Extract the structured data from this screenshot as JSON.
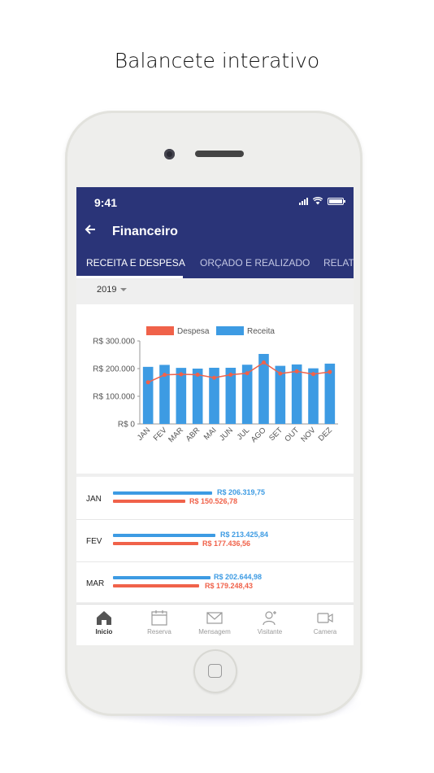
{
  "headline": "Balancete interativo",
  "status": {
    "time": "9:41"
  },
  "appbar": {
    "back_icon": "arrow-left-icon",
    "title": "Financeiro"
  },
  "tabs": [
    {
      "label": "RECEITA E DESPESA",
      "active": true
    },
    {
      "label": "ORÇADO E REALIZADO",
      "active": false
    },
    {
      "label": "RELATÓRIOS",
      "active": false
    }
  ],
  "year_selector": {
    "value": "2019"
  },
  "chart_data": {
    "type": "bar",
    "categories": [
      "JAN",
      "FEV",
      "MAR",
      "ABR",
      "MAI",
      "JUN",
      "JUL",
      "AGO",
      "SET",
      "OUT",
      "NOV",
      "DEZ"
    ],
    "series": [
      {
        "name": "Receita",
        "kind": "bar",
        "color": "#3d9be3",
        "values": [
          206319.75,
          213425.84,
          202644.98,
          200000,
          203000,
          203000,
          214000,
          253000,
          210000,
          215000,
          201000,
          218000
        ]
      },
      {
        "name": "Despesa",
        "kind": "line",
        "color": "#f0624a",
        "values": [
          150526.78,
          177436.56,
          179248.43,
          178000,
          167000,
          178000,
          183000,
          222000,
          182000,
          190000,
          180000,
          188000
        ]
      }
    ],
    "y_ticks": [
      "R$ 0",
      "R$ 100.000",
      "R$ 200.000",
      "R$ 300.000"
    ],
    "ylim": [
      0,
      300000
    ],
    "legend": "top",
    "grid": false
  },
  "list": [
    {
      "month": "JAN",
      "receita": "R$ 206.319,75",
      "despesa": "R$ 150.526,78",
      "receita_value": 206319.75,
      "despesa_value": 150526.78
    },
    {
      "month": "FEV",
      "receita": "R$ 213.425,84",
      "despesa": "R$ 177.436,56",
      "receita_value": 213425.84,
      "despesa_value": 177436.56
    },
    {
      "month": "MAR",
      "receita": "R$ 202.644,98",
      "despesa": "R$ 179.248,43",
      "receita_value": 202644.98,
      "despesa_value": 179248.43
    }
  ],
  "bottom_nav": [
    {
      "label": "Inicio",
      "icon": "home-icon",
      "active": true
    },
    {
      "label": "Reserva",
      "icon": "calendar-icon",
      "active": false
    },
    {
      "label": "Mensagem",
      "icon": "envelope-icon",
      "active": false
    },
    {
      "label": "Visitante",
      "icon": "add-user-icon",
      "active": false
    },
    {
      "label": "Camera",
      "icon": "video-camera-icon",
      "active": false
    }
  ]
}
